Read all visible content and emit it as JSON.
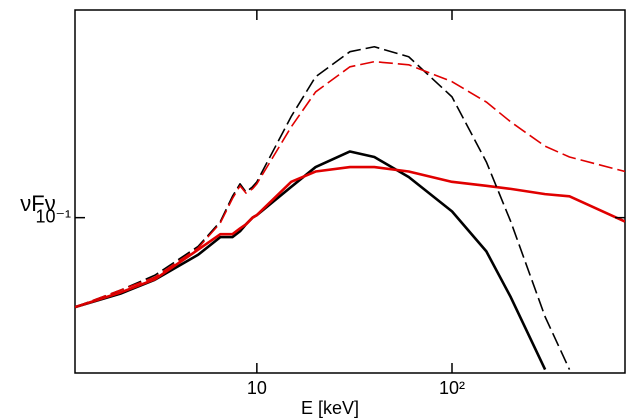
{
  "chart_data": {
    "type": "line",
    "x_label": "E [keV]",
    "y_label": "νFν",
    "xlog": true,
    "ylog": true,
    "xlim": [
      1.17,
      770
    ],
    "ylim": [
      0.03,
      0.5
    ],
    "xticks": [
      {
        "value": 10,
        "label": "10"
      },
      {
        "value": 100,
        "label": "10²"
      }
    ],
    "yticks": [
      {
        "value": 0.1,
        "label": "10⁻¹"
      }
    ],
    "x": [
      1.17,
      2,
      3,
      5,
      6.5,
      7.5,
      8.2,
      8.8,
      9.5,
      10,
      15,
      20,
      30,
      40,
      60,
      100,
      150,
      200,
      300,
      400,
      770
    ],
    "series": [
      {
        "color": "#000000",
        "dash": false,
        "values": [
          0.05,
          0.0555,
          0.0618,
          0.075,
          0.086,
          0.086,
          0.09,
          0.095,
          0.1,
          0.102,
          0.127,
          0.148,
          0.167,
          0.16,
          0.137,
          0.105,
          0.077,
          0.054,
          0.0308,
          null,
          null
        ]
      },
      {
        "color": "#e00000",
        "dash": false,
        "values": [
          0.05,
          0.056,
          0.062,
          0.078,
          0.088,
          0.088,
          0.092,
          0.095,
          0.1,
          0.102,
          0.132,
          0.143,
          0.148,
          0.148,
          0.143,
          0.132,
          0.128,
          0.125,
          0.12,
          0.118,
          0.097
        ]
      },
      {
        "color": "#000000",
        "dash": true,
        "values": [
          0.05,
          0.057,
          0.064,
          0.08,
          0.097,
          0.118,
          0.13,
          0.122,
          0.127,
          0.132,
          0.219,
          0.298,
          0.362,
          0.376,
          0.348,
          0.255,
          0.154,
          0.097,
          0.0464,
          0.0308,
          null
        ]
      },
      {
        "color": "#e00000",
        "dash": true,
        "values": [
          0.05,
          0.057,
          0.063,
          0.079,
          0.096,
          0.116,
          0.128,
          0.121,
          0.125,
          0.13,
          0.202,
          0.265,
          0.322,
          0.335,
          0.327,
          0.287,
          0.245,
          0.21,
          0.174,
          0.16,
          0.143
        ]
      }
    ]
  }
}
